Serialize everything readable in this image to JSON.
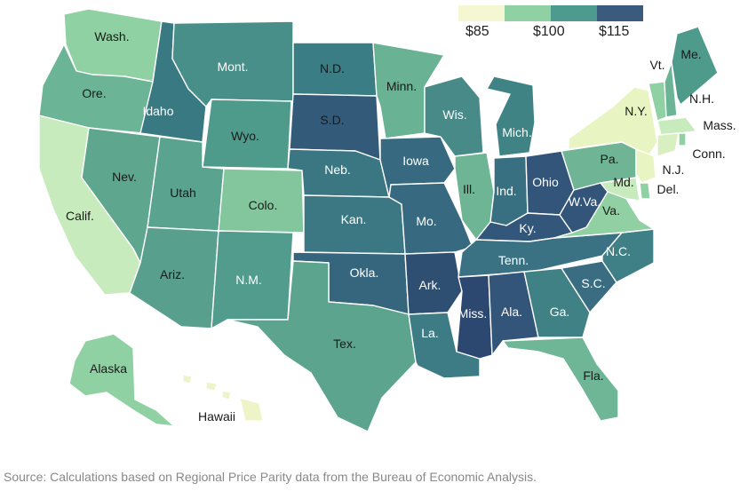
{
  "legend": {
    "colors": [
      "#f5f7d3",
      "#8fd1a3",
      "#4d9a8e",
      "#3a5b7d"
    ],
    "ticks": [
      "$85",
      "$100",
      "$115"
    ]
  },
  "source": "Source: Calculations based on Regional Price Parity data from the Bureau of Economic Analysis.",
  "states": [
    {
      "id": "wash",
      "label": "Wash.",
      "color": "#8fd1a3"
    },
    {
      "id": "ore",
      "label": "Ore.",
      "color": "#6cb496"
    },
    {
      "id": "calif",
      "label": "Calif.",
      "color": "#c7ebbd"
    },
    {
      "id": "idaho",
      "label": "Idaho",
      "color": "#397a82"
    },
    {
      "id": "nev",
      "label": "Nev.",
      "color": "#5ea68e"
    },
    {
      "id": "mont",
      "label": "Mont.",
      "color": "#478f88"
    },
    {
      "id": "wyo",
      "label": "Wyo.",
      "color": "#4f9b8b"
    },
    {
      "id": "utah",
      "label": "Utah",
      "color": "#5aa38e"
    },
    {
      "id": "ariz",
      "label": "Ariz.",
      "color": "#58a08d"
    },
    {
      "id": "colo",
      "label": "Colo.",
      "color": "#83c69d"
    },
    {
      "id": "nm",
      "label": "N.M.",
      "color": "#519c8c"
    },
    {
      "id": "nd",
      "label": "N.D.",
      "color": "#3a7d84"
    },
    {
      "id": "sd",
      "label": "S.D.",
      "color": "#335b79"
    },
    {
      "id": "neb",
      "label": "Neb.",
      "color": "#3b7783"
    },
    {
      "id": "kan",
      "label": "Kan.",
      "color": "#3c7883"
    },
    {
      "id": "okla",
      "label": "Okla.",
      "color": "#36667e"
    },
    {
      "id": "tex",
      "label": "Tex.",
      "color": "#5ca48e"
    },
    {
      "id": "minn",
      "label": "Minn.",
      "color": "#69b294"
    },
    {
      "id": "iowa",
      "label": "Iowa",
      "color": "#376a80"
    },
    {
      "id": "mo",
      "label": "Mo.",
      "color": "#376a80"
    },
    {
      "id": "ark",
      "label": "Ark.",
      "color": "#2f4f72"
    },
    {
      "id": "la",
      "label": "La.",
      "color": "#3e7c85"
    },
    {
      "id": "wis",
      "label": "Wis.",
      "color": "#478a88"
    },
    {
      "id": "ill",
      "label": "Ill.",
      "color": "#6db594"
    },
    {
      "id": "mich",
      "label": "Mich.",
      "color": "#3f8385"
    },
    {
      "id": "ind",
      "label": "Ind.",
      "color": "#386f81"
    },
    {
      "id": "ohio",
      "label": "Ohio",
      "color": "#33557a"
    },
    {
      "id": "ky",
      "label": "Ky.",
      "color": "#33577b"
    },
    {
      "id": "tenn",
      "label": "Tenn.",
      "color": "#3a7283"
    },
    {
      "id": "miss",
      "label": "Miss.",
      "color": "#2d4870"
    },
    {
      "id": "ala",
      "label": "Ala.",
      "color": "#335579"
    },
    {
      "id": "ga",
      "label": "Ga.",
      "color": "#408186"
    },
    {
      "id": "fla",
      "label": "Fla.",
      "color": "#6fb696"
    },
    {
      "id": "sc",
      "label": "S.C.",
      "color": "#3a6d81"
    },
    {
      "id": "nc",
      "label": "N.C.",
      "color": "#3f7f86"
    },
    {
      "id": "va",
      "label": "Va.",
      "color": "#91d0a3"
    },
    {
      "id": "wva",
      "label": "W.Va.",
      "color": "#33557a"
    },
    {
      "id": "pa",
      "label": "Pa.",
      "color": "#6fb595"
    },
    {
      "id": "ny",
      "label": "N.Y.",
      "color": "#e8f5c2"
    },
    {
      "id": "vt",
      "label": "Vt.",
      "color": "#8fd1a3"
    },
    {
      "id": "nh",
      "label": "N.H.",
      "color": "#6cb496"
    },
    {
      "id": "me",
      "label": "Me.",
      "color": "#4f9b8b"
    },
    {
      "id": "mass",
      "label": "Mass.",
      "color": "#c7ebbd"
    },
    {
      "id": "conn",
      "label": "Conn.",
      "color": "#d8f0c0"
    },
    {
      "id": "ri",
      "label": "",
      "color": "#8fd1a3"
    },
    {
      "id": "nj",
      "label": "N.J.",
      "color": "#e8f5c2"
    },
    {
      "id": "del",
      "label": "Del.",
      "color": "#8fd1a3"
    },
    {
      "id": "md",
      "label": "Md.",
      "color": "#c7ebbd"
    },
    {
      "id": "alaska",
      "label": "Alaska",
      "color": "#8fd1a3"
    },
    {
      "id": "hawaii",
      "label": "Hawaii",
      "color": "#eef3c8"
    }
  ]
}
